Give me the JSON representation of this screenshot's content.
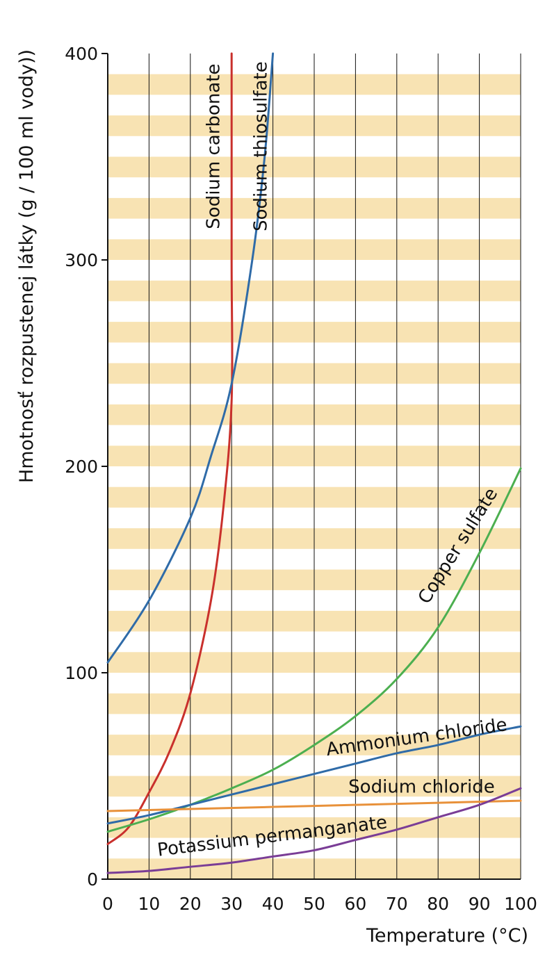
{
  "chart_data": {
    "type": "line",
    "title": "",
    "xlabel": "Temperature (°C)",
    "ylabel": "Hmotnosť rozpustenej látky (g / 100 ml vody))",
    "xlim": [
      0,
      100
    ],
    "ylim": [
      0,
      400
    ],
    "x_ticks": [
      "0",
      "10",
      "20",
      "30",
      "40",
      "50",
      "60",
      "70",
      "80",
      "90",
      "100"
    ],
    "y_ticks": [
      "0",
      "100",
      "200",
      "300",
      "400"
    ],
    "grid": "vertical lines every 10 °C; horizontal pale orange bands every 10 g",
    "colors": {
      "band": "#f8e3b3",
      "grid": "#111111",
      "sodium_carbonate": "#c9302c",
      "sodium_thiosulfate": "#2f6ba8",
      "copper_sulfate": "#4caf50",
      "ammonium_chloride": "#2f6ba8",
      "sodium_chloride": "#e8913a",
      "potassium_permanganate": "#7a3d96"
    },
    "series": [
      {
        "name": "Sodium carbonate",
        "color": "#c9302c",
        "x": [
          0,
          5,
          10,
          15,
          20,
          25,
          28,
          30,
          30,
          30
        ],
        "y": [
          17,
          25,
          42,
          62,
          90,
          135,
          180,
          232,
          300,
          400
        ]
      },
      {
        "name": "Sodium thiosulfate",
        "color": "#2f6ba8",
        "x": [
          0,
          10,
          20,
          25,
          30,
          35,
          38,
          40
        ],
        "y": [
          105,
          135,
          175,
          205,
          240,
          300,
          350,
          400
        ]
      },
      {
        "name": "Copper sulfate",
        "color": "#4caf50",
        "x": [
          0,
          10,
          20,
          30,
          40,
          50,
          60,
          70,
          80,
          90,
          100
        ],
        "y": [
          23,
          29,
          36,
          44,
          53,
          65,
          79,
          97,
          122,
          158,
          199
        ]
      },
      {
        "name": "Ammonium chloride",
        "color": "#2f6ba8",
        "x": [
          0,
          10,
          20,
          30,
          40,
          50,
          60,
          70,
          80,
          90,
          100
        ],
        "y": [
          27,
          31,
          36,
          41,
          46,
          51,
          56,
          61,
          65,
          70,
          74
        ]
      },
      {
        "name": "Sodium chloride",
        "color": "#e8913a",
        "x": [
          0,
          20,
          40,
          60,
          80,
          100
        ],
        "y": [
          33,
          34,
          35,
          36,
          37,
          38
        ]
      },
      {
        "name": "Potassium permanganate",
        "color": "#7a3d96",
        "x": [
          0,
          10,
          20,
          30,
          40,
          50,
          60,
          70,
          80,
          90,
          100
        ],
        "y": [
          3,
          4,
          6,
          8,
          11,
          14,
          19,
          24,
          30,
          36,
          44
        ]
      }
    ],
    "annotations": [
      {
        "text": "Sodium carbonate",
        "x": 27,
        "y": 355,
        "rotation": -90
      },
      {
        "text": "Sodium thiosulfate",
        "x": 38.5,
        "y": 355,
        "rotation": -90
      },
      {
        "text": "Copper sulfate",
        "x": 86,
        "y": 160,
        "rotation": -58
      },
      {
        "text": "Ammonium chloride",
        "x": 75,
        "y": 66,
        "rotation": -8
      },
      {
        "text": "Sodium chloride",
        "x": 76,
        "y": 42,
        "rotation": 0
      },
      {
        "text": "Potassium permanganate",
        "x": 40,
        "y": 18,
        "rotation": -7
      }
    ]
  }
}
